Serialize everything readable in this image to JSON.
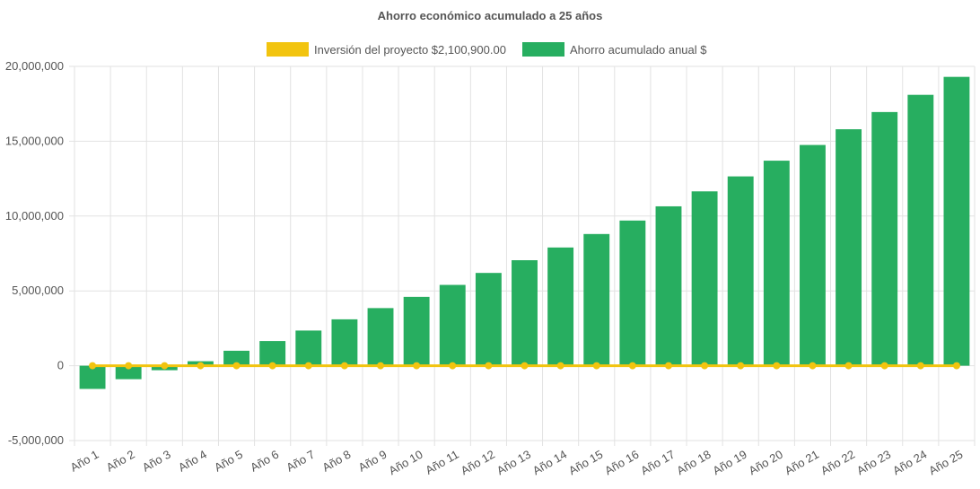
{
  "chart_data": {
    "type": "bar",
    "title": "Ahorro económico acumulado a 25 años",
    "categories": [
      "Año 1",
      "Año 2",
      "Año 3",
      "Año 4",
      "Año 5",
      "Año 6",
      "Año 7",
      "Año 8",
      "Año 9",
      "Año 10",
      "Año 11",
      "Año 12",
      "Año 13",
      "Año 14",
      "Año 15",
      "Año 16",
      "Año 17",
      "Año 18",
      "Año 19",
      "Año 20",
      "Año 21",
      "Año 22",
      "Año 23",
      "Año 24",
      "Año 25"
    ],
    "series": [
      {
        "name": "Inversión del proyecto $2,100,900.00",
        "type": "line",
        "color": "#f2c40f",
        "values": [
          0,
          0,
          0,
          0,
          0,
          0,
          0,
          0,
          0,
          0,
          0,
          0,
          0,
          0,
          0,
          0,
          0,
          0,
          0,
          0,
          0,
          0,
          0,
          0,
          0
        ]
      },
      {
        "name": "Ahorro acumulado anual $",
        "type": "bar",
        "color": "#27ae60",
        "values": [
          -1550000,
          -900000,
          -300000,
          300000,
          1000000,
          1650000,
          2350000,
          3100000,
          3850000,
          4600000,
          5400000,
          6200000,
          7050000,
          7900000,
          8800000,
          9700000,
          10650000,
          11650000,
          12650000,
          13700000,
          14750000,
          15800000,
          16950000,
          18100000,
          19300000
        ]
      }
    ],
    "ylim": [
      -5000000,
      20000000
    ],
    "yticks": [
      "20,000,000",
      "15,000,000",
      "10,000,000",
      "5,000,000",
      "0",
      "-5,000,000"
    ],
    "ytick_values": [
      20000000,
      15000000,
      10000000,
      5000000,
      0,
      -5000000
    ],
    "grid": true,
    "legend_position": "top"
  }
}
